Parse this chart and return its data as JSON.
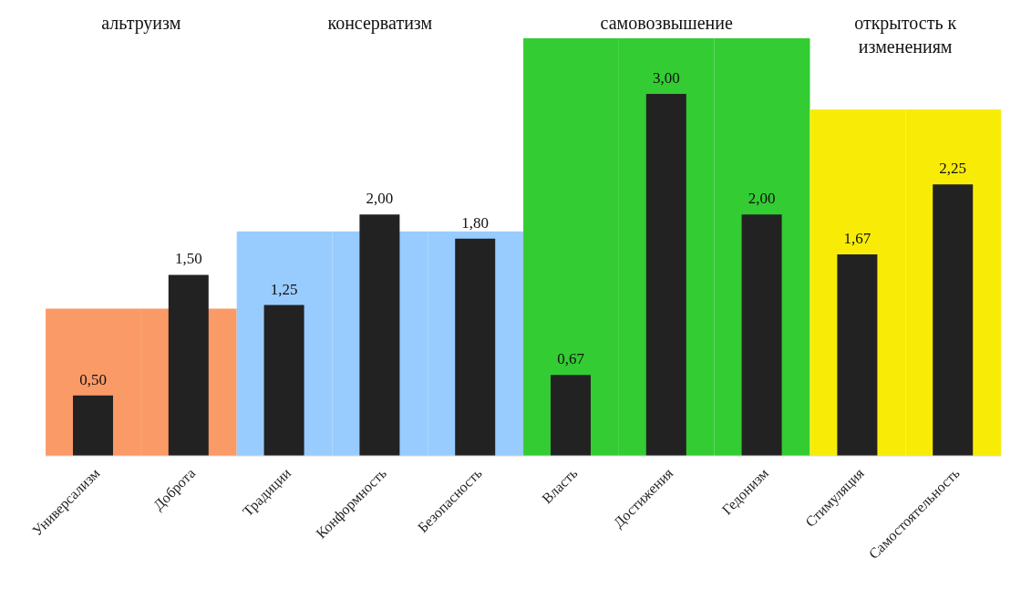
{
  "chart_data": {
    "type": "bar",
    "categories": [
      "Универсализм",
      "Доброта",
      "Традиции",
      "Конформность",
      "Безопасность",
      "Власть",
      "Достижения",
      "Гедонизм",
      "Стимуляция",
      "Самостоятельность"
    ],
    "series": [
      {
        "color": "#222222",
        "values": [
          0.5,
          1.5,
          1.25,
          2.0,
          1.8,
          0.67,
          3.0,
          2.0,
          1.67,
          2.25
        ],
        "value_labels": [
          "0,50",
          "1,50",
          "1,25",
          "2,00",
          "1,80",
          "0,67",
          "3,00",
          "2,00",
          "1,67",
          "2,25"
        ]
      },
      {
        "colors": [
          "#fa9a66",
          "#fa9a66",
          "#99ccfe",
          "#99ccfe",
          "#99ccfe",
          "#33cc33",
          "#33cc33",
          "#33cc33",
          "#f8ec07",
          "#f8ec07"
        ],
        "values": [
          1.22,
          1.22,
          1.86,
          1.86,
          1.86,
          3.46,
          3.46,
          3.46,
          2.87,
          2.87
        ]
      }
    ],
    "annotations": [
      "альтруизм",
      "консерватизм",
      "самовозвышение",
      "открытость к изменениям"
    ],
    "tick_labels": "x"
  }
}
